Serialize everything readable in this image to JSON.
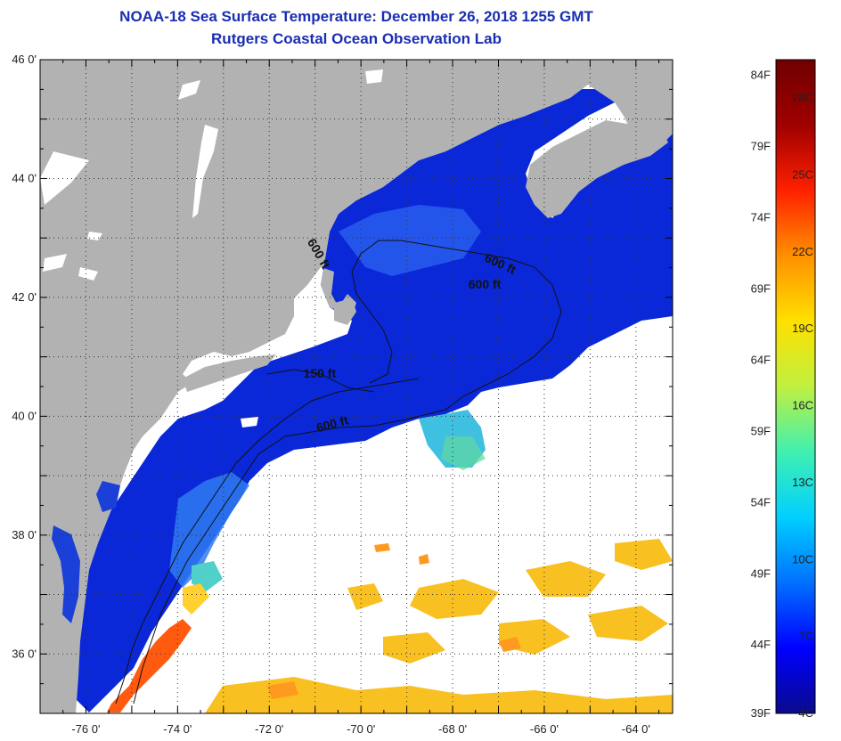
{
  "title": "NOAA-18 Sea Surface Temperature:  December 26, 2018 1255 GMT",
  "subtitle": "Rutgers Coastal Ocean Observation Lab",
  "lat_ticks": [
    {
      "value": 46,
      "label": "46 0'"
    },
    {
      "value": 44,
      "label": "44 0'"
    },
    {
      "value": 42,
      "label": "42 0'"
    },
    {
      "value": 40,
      "label": "40 0'"
    },
    {
      "value": 38,
      "label": "38 0'"
    },
    {
      "value": 36,
      "label": "36 0'"
    }
  ],
  "lon_ticks": [
    {
      "value": -76,
      "label": "-76 0'"
    },
    {
      "value": -74,
      "label": "-74 0'"
    },
    {
      "value": -72,
      "label": "-72 0'"
    },
    {
      "value": -70,
      "label": "-70 0'"
    },
    {
      "value": -68,
      "label": "-68 0'"
    },
    {
      "value": -66,
      "label": "-66 0'"
    },
    {
      "value": -64,
      "label": "-64 0'"
    }
  ],
  "contour_labels": [
    {
      "text": "600 ft",
      "lon": -71.0,
      "lat": 42.7,
      "angle": 60
    },
    {
      "text": "600 ft",
      "lon": -67.0,
      "lat": 42.5,
      "angle": 25
    },
    {
      "text": "600 ft",
      "lon": -67.3,
      "lat": 42.15,
      "angle": 0
    },
    {
      "text": "150 ft",
      "lon": -70.9,
      "lat": 40.65,
      "angle": 0
    },
    {
      "text": "600 ft",
      "lon": -70.6,
      "lat": 39.8,
      "angle": -15
    }
  ],
  "colorbar": {
    "fahrenheit_labels": [
      "84F",
      "79F",
      "74F",
      "69F",
      "64F",
      "59F",
      "54F",
      "49F",
      "44F",
      "39F"
    ],
    "celsius_labels": [
      "28C",
      "25C",
      "22C",
      "19C",
      "16C",
      "13C",
      "10C",
      "7C",
      "4C"
    ],
    "min_c": 4,
    "max_c": 29.5,
    "colors": [
      "#0a0a8c",
      "#0000ff",
      "#0070ff",
      "#00d0ff",
      "#40f0b0",
      "#c0f040",
      "#ffe000",
      "#ff9000",
      "#ff2000",
      "#a00000",
      "#700000"
    ]
  },
  "colors": {
    "land": "#b2b2b2",
    "lake": "#ffffff",
    "cloud": "#ffffff",
    "shelf_water": "#1840e8",
    "deep_water": "#0a20c8",
    "slope_water": "#38a8f0",
    "gulf_stream": "#ff5a10",
    "warm_patches": "#f8c020",
    "title": "#1a2eb3"
  }
}
